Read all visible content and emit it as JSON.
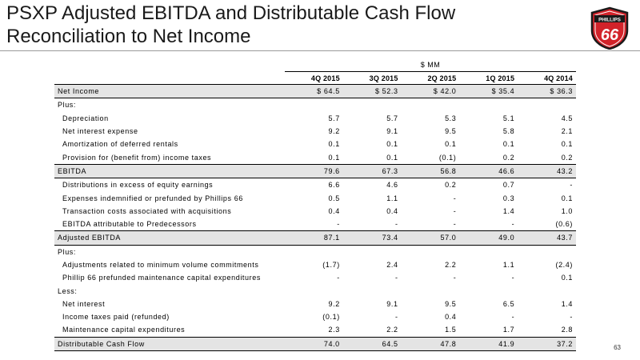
{
  "title_line1": "PSXP Adjusted EBITDA and Distributable Cash Flow",
  "title_line2": "Reconciliation to Net Income",
  "logo_text": "PHILLIPS 66",
  "unit_label": "$ MM",
  "columns": [
    "4Q 2015",
    "3Q 2015",
    "2Q 2015",
    "1Q 2015",
    "4Q 2014"
  ],
  "rows": [
    {
      "label": "Net Income",
      "values": [
        "$ 64.5",
        "$ 52.3",
        "$ 42.0",
        "$ 35.4",
        "$ 36.3"
      ]
    },
    {
      "label": "Plus:",
      "values": [
        "",
        "",
        "",
        "",
        ""
      ]
    },
    {
      "label": "Depreciation",
      "values": [
        "5.7",
        "5.7",
        "5.3",
        "5.1",
        "4.5"
      ]
    },
    {
      "label": "Net interest expense",
      "values": [
        "9.2",
        "9.1",
        "9.5",
        "5.8",
        "2.1"
      ]
    },
    {
      "label": "Amortization of deferred rentals",
      "values": [
        "0.1",
        "0.1",
        "0.1",
        "0.1",
        "0.1"
      ]
    },
    {
      "label": "Provision for (benefit from) income taxes",
      "values": [
        "0.1",
        "0.1",
        "(0.1)",
        "0.2",
        "0.2"
      ]
    },
    {
      "label": "EBITDA",
      "values": [
        "79.6",
        "67.3",
        "56.8",
        "46.6",
        "43.2"
      ]
    },
    {
      "label": "Distributions in excess of equity earnings",
      "values": [
        "6.6",
        "4.6",
        "0.2",
        "0.7",
        "-"
      ]
    },
    {
      "label": "Expenses indemnified or prefunded by Phillips 66",
      "values": [
        "0.5",
        "1.1",
        "-",
        "0.3",
        "0.1"
      ]
    },
    {
      "label": "Transaction costs associated with acquisitions",
      "values": [
        "0.4",
        "0.4",
        "-",
        "1.4",
        "1.0"
      ]
    },
    {
      "label": "EBITDA attributable to Predecessors",
      "values": [
        "-",
        "-",
        "-",
        "-",
        "(0.6)"
      ]
    },
    {
      "label": "Adjusted EBITDA",
      "values": [
        "87.1",
        "73.4",
        "57.0",
        "49.0",
        "43.7"
      ]
    },
    {
      "label": "Plus:",
      "values": [
        "",
        "",
        "",
        "",
        ""
      ]
    },
    {
      "label": "Adjustments related to minimum volume commitments",
      "values": [
        "(1.7)",
        "2.4",
        "2.2",
        "1.1",
        "(2.4)"
      ]
    },
    {
      "label": "Phillip 66 prefunded maintenance capital expenditures",
      "values": [
        "-",
        "-",
        "-",
        "-",
        "0.1"
      ]
    },
    {
      "label": "Less:",
      "values": [
        "",
        "",
        "",
        "",
        ""
      ]
    },
    {
      "label": "Net interest",
      "values": [
        "9.2",
        "9.1",
        "9.5",
        "6.5",
        "1.4"
      ]
    },
    {
      "label": "Income taxes paid (refunded)",
      "values": [
        "(0.1)",
        "-",
        "0.4",
        "-",
        "-"
      ]
    },
    {
      "label": "Maintenance capital expenditures",
      "values": [
        "2.3",
        "2.2",
        "1.5",
        "1.7",
        "2.8"
      ]
    },
    {
      "label": "Distributable Cash Flow",
      "values": [
        "74.0",
        "64.5",
        "47.8",
        "41.9",
        "37.2"
      ]
    }
  ],
  "page_number": "63",
  "colors": {
    "logo_red": "#d2232a",
    "shade": "#e4e4e4"
  }
}
